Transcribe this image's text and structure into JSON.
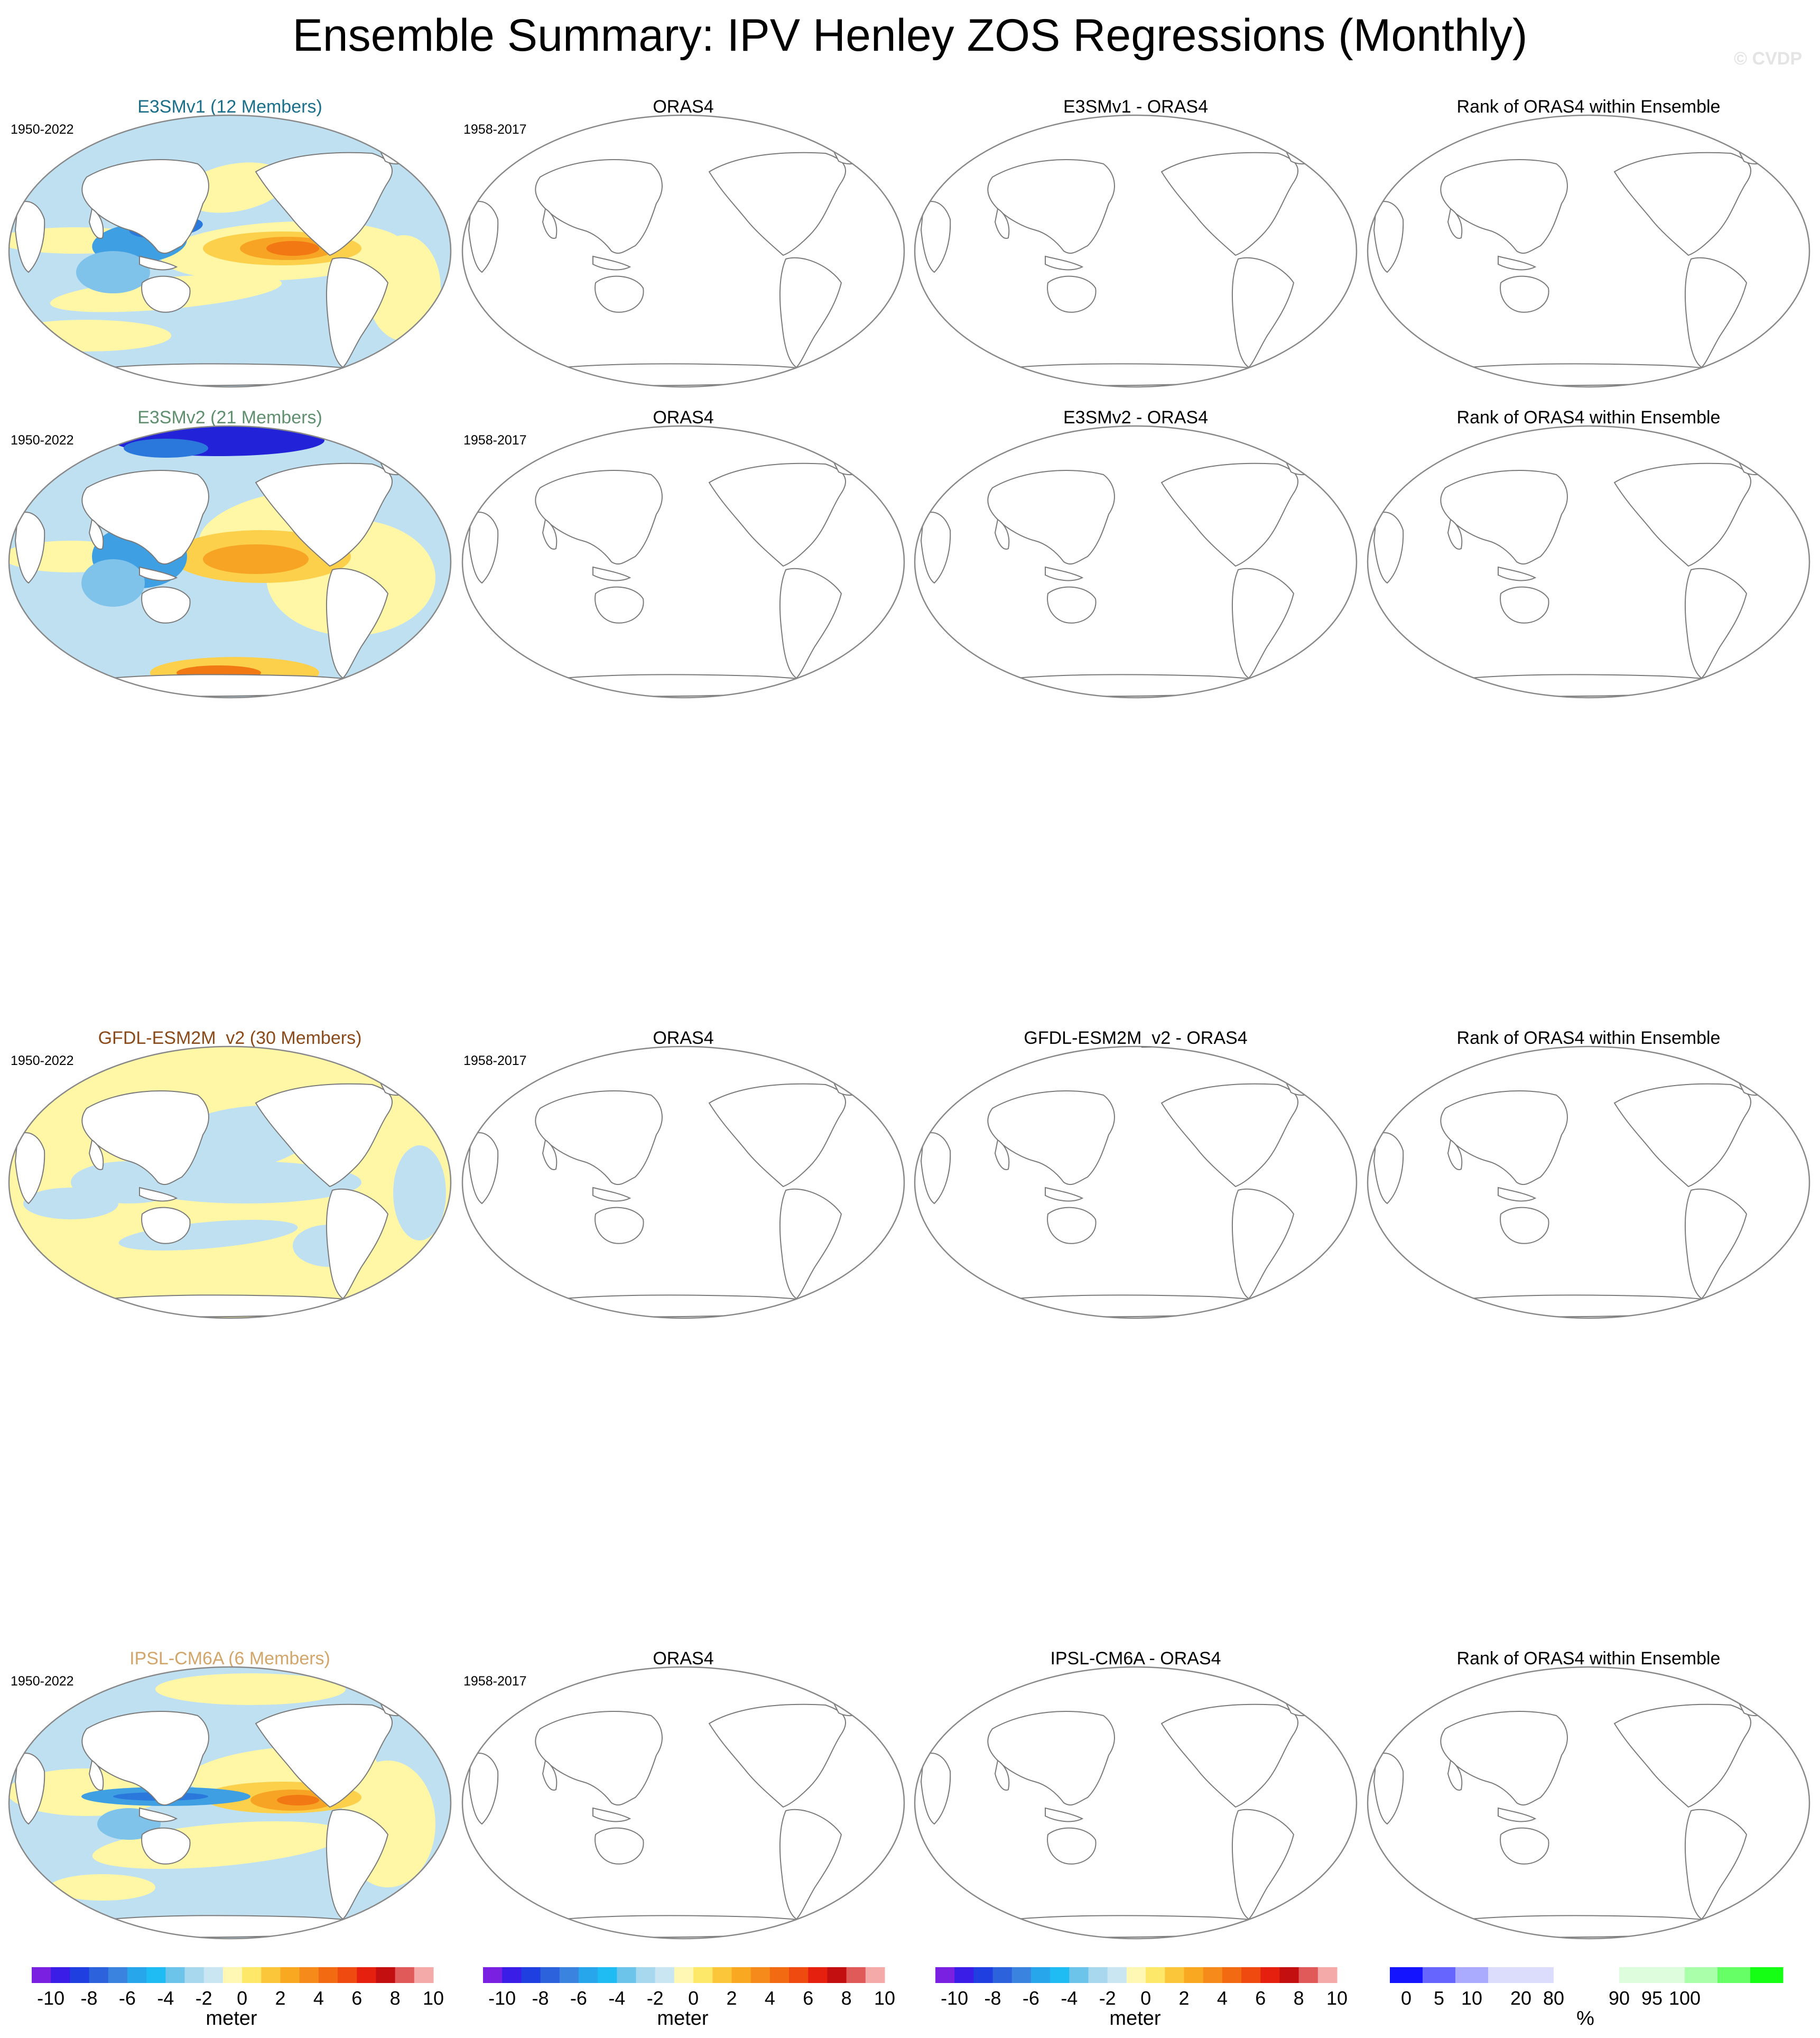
{
  "title": "Ensemble Summary: IPV Henley ZOS Regressions (Monthly)",
  "watermark": "© CVDP",
  "rows": [
    {
      "model_title": "E3SMv1 (12 Members)",
      "model_color": "#1b6f8a",
      "model_period": "1950-2022",
      "obs_title": "ORAS4",
      "obs_period": "1958-2017",
      "diff_title": "E3SMv1 - ORAS4",
      "rank_title": "Rank of ORAS4 within Ensemble",
      "pattern": "v1"
    },
    {
      "model_title": "E3SMv2 (21 Members)",
      "model_color": "#5f8f6f",
      "model_period": "1950-2022",
      "obs_title": "ORAS4",
      "obs_period": "1958-2017",
      "diff_title": "E3SMv2 - ORAS4",
      "rank_title": "Rank of ORAS4 within Ensemble",
      "pattern": "v2"
    },
    {
      "model_title": "GFDL-ESM2M_v2 (30 Members)",
      "model_color": "#8b4a1a",
      "model_period": "1950-2022",
      "obs_title": "ORAS4",
      "obs_period": "1958-2017",
      "diff_title": "GFDL-ESM2M_v2 - ORAS4",
      "rank_title": "Rank of ORAS4 within Ensemble",
      "pattern": "gfdl"
    },
    {
      "model_title": "IPSL-CM6A (6 Members)",
      "model_color": "#d2a66a",
      "model_period": "1950-2022",
      "obs_title": "ORAS4",
      "obs_period": "1958-2017",
      "diff_title": "IPSL-CM6A - ORAS4",
      "rank_title": "Rank of ORAS4 within Ensemble",
      "pattern": "ipsl"
    }
  ],
  "colorbars": {
    "meter": {
      "unit": "meter",
      "ticks": [
        "-10",
        "-8",
        "-6",
        "-4",
        "-2",
        "0",
        "2",
        "4",
        "6",
        "8",
        "10"
      ],
      "colors": [
        "#7a20e0",
        "#3a1ee8",
        "#1f3fe0",
        "#2c62dc",
        "#3a84e0",
        "#27a6ec",
        "#1fbcf4",
        "#6cc4ea",
        "#a8d8ee",
        "#cbe6f3",
        "#fff8b4",
        "#fde86a",
        "#fcc63a",
        "#f9a821",
        "#f68a1a",
        "#f26a12",
        "#ef4a10",
        "#e6200f",
        "#c40f10",
        "#e05a5a",
        "#f5aaaa"
      ]
    },
    "percent": {
      "unit": "%",
      "ticks": [
        "0",
        "5",
        "10",
        "20",
        "80",
        "90",
        "95",
        "100"
      ],
      "tick_positions": [
        0.5,
        1.5,
        2.5,
        4,
        5,
        7,
        8,
        9
      ],
      "colors": [
        "#1414ff",
        "#6666ff",
        "#aaaaff",
        "#dcdcfc",
        "#dcdcfc",
        "#ffffff",
        "#ffffff",
        "#ddfddd",
        "#ddfddd",
        "#aaffaa",
        "#66ff66",
        "#14ff14"
      ]
    }
  }
}
